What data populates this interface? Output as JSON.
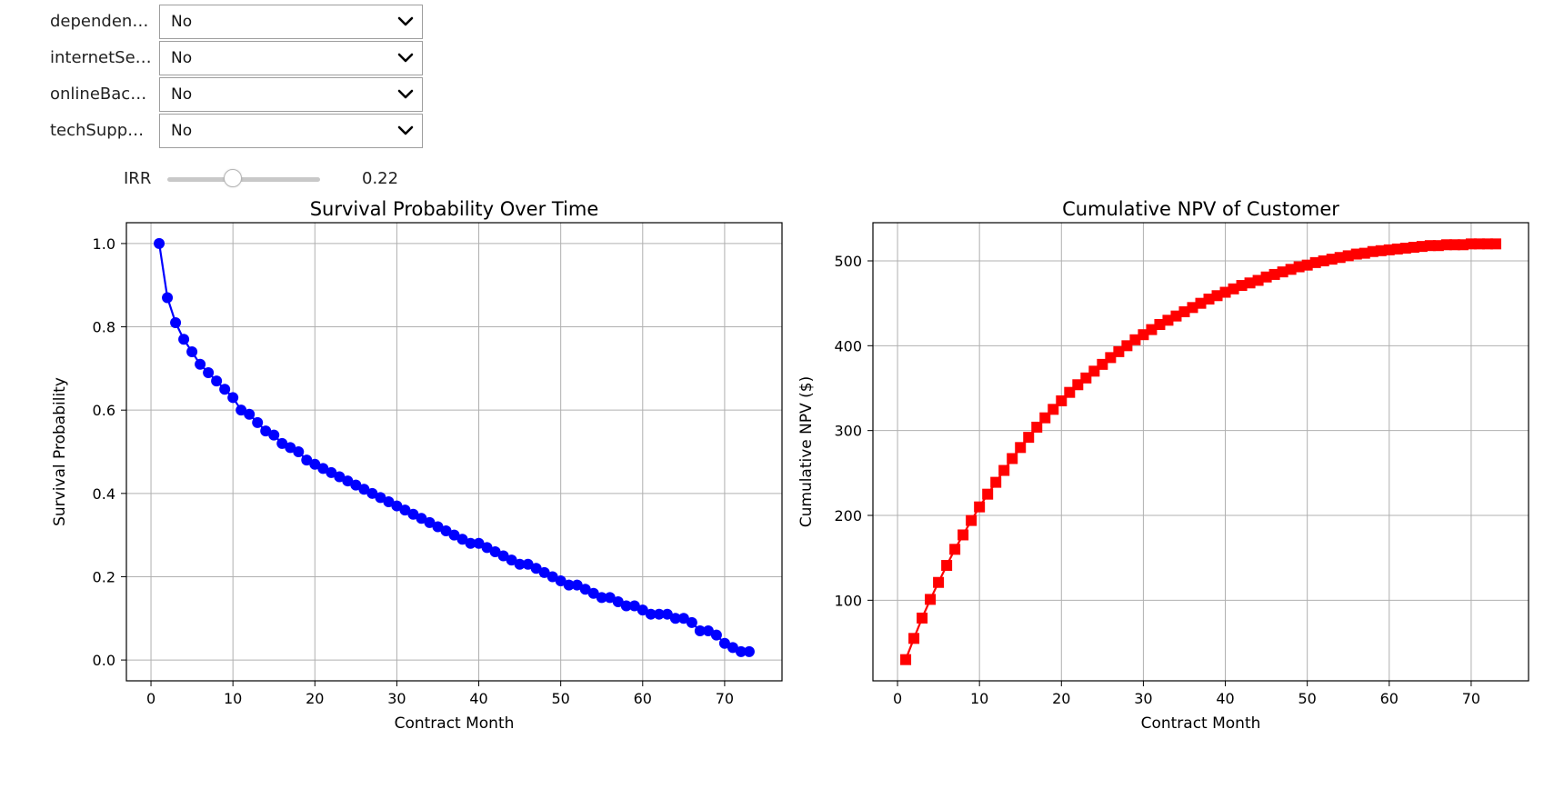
{
  "widgets": {
    "dropdowns": [
      {
        "label": "dependent...",
        "value": "No"
      },
      {
        "label": "internetSer...",
        "value": "No"
      },
      {
        "label": "onlineBack...",
        "value": "No"
      },
      {
        "label": "techSuppo...",
        "value": "No"
      }
    ],
    "slider": {
      "label": "IRR",
      "value_text": "0.22",
      "fraction": 0.43
    }
  },
  "chart_data": [
    {
      "type": "line",
      "title": "Survival Probability Over Time",
      "xlabel": "Contract Month",
      "ylabel": "Survival Probability",
      "xlim": [
        -3,
        77
      ],
      "ylim": [
        -0.05,
        1.05
      ],
      "xticks": [
        0,
        10,
        20,
        30,
        40,
        50,
        60,
        70
      ],
      "yticks": [
        0.0,
        0.2,
        0.4,
        0.6,
        0.8,
        1.0
      ],
      "ytick_decimals": 1,
      "grid": true,
      "marker": "circle",
      "color": "#0000ff",
      "x": [
        1,
        2,
        3,
        4,
        5,
        6,
        7,
        8,
        9,
        10,
        11,
        12,
        13,
        14,
        15,
        16,
        17,
        18,
        19,
        20,
        21,
        22,
        23,
        24,
        25,
        26,
        27,
        28,
        29,
        30,
        31,
        32,
        33,
        34,
        35,
        36,
        37,
        38,
        39,
        40,
        41,
        42,
        43,
        44,
        45,
        46,
        47,
        48,
        49,
        50,
        51,
        52,
        53,
        54,
        55,
        56,
        57,
        58,
        59,
        60,
        61,
        62,
        63,
        64,
        65,
        66,
        67,
        68,
        69,
        70,
        71,
        72,
        73
      ],
      "y": [
        1.0,
        0.87,
        0.81,
        0.77,
        0.74,
        0.71,
        0.69,
        0.67,
        0.65,
        0.63,
        0.6,
        0.59,
        0.57,
        0.55,
        0.54,
        0.52,
        0.51,
        0.5,
        0.48,
        0.47,
        0.46,
        0.45,
        0.44,
        0.43,
        0.42,
        0.41,
        0.4,
        0.39,
        0.38,
        0.37,
        0.36,
        0.35,
        0.34,
        0.33,
        0.32,
        0.31,
        0.3,
        0.29,
        0.28,
        0.28,
        0.27,
        0.26,
        0.25,
        0.24,
        0.23,
        0.23,
        0.22,
        0.21,
        0.2,
        0.19,
        0.18,
        0.18,
        0.17,
        0.16,
        0.15,
        0.15,
        0.14,
        0.13,
        0.13,
        0.12,
        0.11,
        0.11,
        0.11,
        0.1,
        0.1,
        0.09,
        0.07,
        0.07,
        0.06,
        0.04,
        0.03,
        0.02,
        0.02
      ]
    },
    {
      "type": "line",
      "title": "Cumulative NPV of Customer",
      "xlabel": "Contract Month",
      "ylabel": "Cumulative NPV ($)",
      "xlim": [
        -3,
        77
      ],
      "ylim": [
        5,
        545
      ],
      "xticks": [
        0,
        10,
        20,
        30,
        40,
        50,
        60,
        70
      ],
      "yticks": [
        100,
        200,
        300,
        400,
        500
      ],
      "ytick_decimals": 0,
      "grid": true,
      "marker": "square",
      "color": "#ff0000",
      "x": [
        1,
        2,
        3,
        4,
        5,
        6,
        7,
        8,
        9,
        10,
        11,
        12,
        13,
        14,
        15,
        16,
        17,
        18,
        19,
        20,
        21,
        22,
        23,
        24,
        25,
        26,
        27,
        28,
        29,
        30,
        31,
        32,
        33,
        34,
        35,
        36,
        37,
        38,
        39,
        40,
        41,
        42,
        43,
        44,
        45,
        46,
        47,
        48,
        49,
        50,
        51,
        52,
        53,
        54,
        55,
        56,
        57,
        58,
        59,
        60,
        61,
        62,
        63,
        64,
        65,
        66,
        67,
        68,
        69,
        70,
        71,
        72,
        73
      ],
      "y": [
        30,
        55,
        79,
        101,
        121,
        141,
        160,
        177,
        194,
        210,
        225,
        239,
        253,
        267,
        280,
        292,
        304,
        315,
        325,
        335,
        345,
        354,
        362,
        370,
        378,
        386,
        393,
        400,
        407,
        413,
        419,
        425,
        430,
        435,
        440,
        445,
        450,
        455,
        459,
        463,
        467,
        471,
        474,
        477,
        481,
        484,
        487,
        490,
        493,
        495,
        498,
        500,
        502,
        504,
        506,
        508,
        509,
        511,
        512,
        513,
        514,
        515,
        516,
        517,
        518,
        518,
        519,
        519,
        519,
        520,
        520,
        520,
        520
      ]
    }
  ]
}
